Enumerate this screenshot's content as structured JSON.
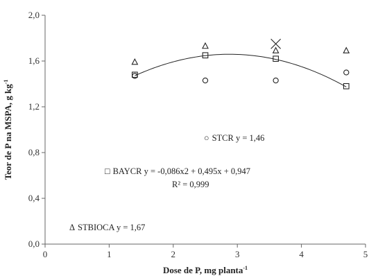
{
  "chart_data": {
    "type": "scatter",
    "title": "",
    "xlabel": "Dose de P, mg planta",
    "xlabel_sup": "-1",
    "ylabel": "Teor de P na MSPA, g kg",
    "ylabel_sup": "-1",
    "xlim": [
      0,
      5
    ],
    "ylim": [
      0,
      2
    ],
    "x_ticks": [
      0,
      1,
      2,
      3,
      4,
      5
    ],
    "x_tick_labels": [
      "0",
      "1",
      "2",
      "3",
      "4",
      "5"
    ],
    "y_ticks": [
      0,
      0.4,
      0.8,
      1.2,
      1.6,
      2.0
    ],
    "y_tick_labels": [
      "0,0",
      "0,4",
      "0,8",
      "1,2",
      "1,6",
      "2,0"
    ],
    "grid": false,
    "series": [
      {
        "name": "STCR",
        "marker": "circle",
        "x": [
          1.4,
          2.5,
          3.6,
          4.7
        ],
        "y": [
          1.47,
          1.43,
          1.43,
          1.5
        ]
      },
      {
        "name": "BAYCR",
        "marker": "square",
        "x": [
          1.4,
          2.5,
          3.6,
          4.7
        ],
        "y": [
          1.48,
          1.65,
          1.62,
          1.38
        ]
      },
      {
        "name": "STBIOCA",
        "marker": "triangle",
        "x": [
          1.4,
          2.5,
          3.6,
          4.7
        ],
        "y": [
          1.59,
          1.73,
          1.69,
          1.69
        ]
      }
    ],
    "extra_markers": [
      {
        "marker": "x",
        "x": 3.6,
        "y": 1.75
      }
    ],
    "fit": {
      "series": "BAYCR",
      "a": -0.086,
      "b": 0.495,
      "c": 0.947,
      "x_range": [
        1.4,
        4.7
      ]
    },
    "annotations": {
      "stcr_symbol": "○",
      "stcr_text": "STCR y = 1,46",
      "baycr_symbol": "□",
      "baycr_text": "BAYCR y = -0,086x2 + 0,495x + 0,947",
      "baycr_r2": "R² = 0,999",
      "stbioca_symbol": "Δ",
      "stbioca_text": "STBIOCA y = 1,67"
    }
  }
}
